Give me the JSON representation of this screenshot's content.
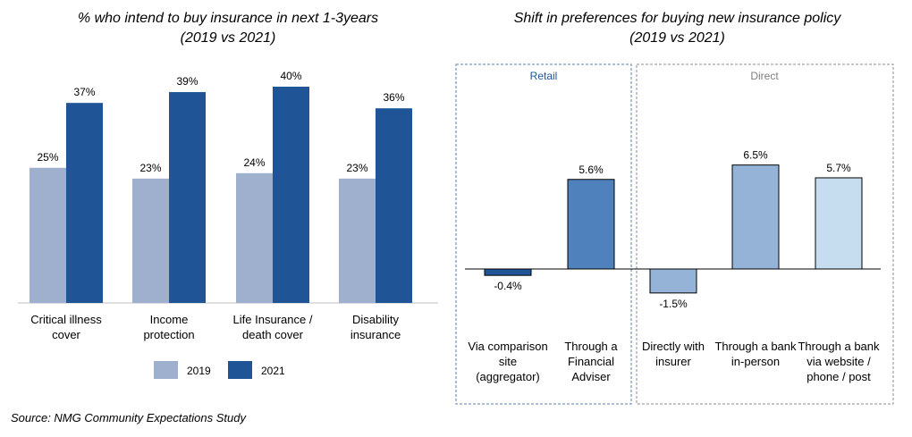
{
  "source": "Source: NMG Community Expectations Study",
  "chart_data": [
    {
      "type": "bar",
      "title": "% who intend to buy insurance in next 1-3years",
      "subtitle": "(2019 vs 2021)",
      "categories": [
        [
          "Critical illness",
          "cover"
        ],
        [
          "Income",
          "protection"
        ],
        [
          "Life Insurance /",
          "death cover"
        ],
        [
          "Disability",
          "insurance"
        ]
      ],
      "series": [
        {
          "name": "2019",
          "values": [
            25,
            23,
            24,
            23
          ],
          "labels": [
            "25%",
            "23%",
            "24%",
            "23%"
          ],
          "color": "#9FB0CE"
        },
        {
          "name": "2021",
          "values": [
            37,
            39,
            40,
            36
          ],
          "labels": [
            "37%",
            "39%",
            "40%",
            "36%"
          ],
          "color": "#1F5596"
        }
      ],
      "ylim": [
        0,
        45
      ],
      "grid": false,
      "legend": "bottom"
    },
    {
      "type": "bar",
      "title": "Shift in preferences for buying new insurance policy",
      "subtitle": "(2019 vs 2021)",
      "groups": [
        "Retail",
        "Direct"
      ],
      "categories": [
        {
          "group": "Retail",
          "label": [
            "Via comparison",
            "site",
            "(aggregator)"
          ],
          "value": -0.4,
          "value_label": "-0.4%",
          "color": "#1F5596"
        },
        {
          "group": "Retail",
          "label": [
            "Through a",
            "Financial",
            "Adviser"
          ],
          "value": 5.6,
          "value_label": "5.6%",
          "color": "#4F81BD"
        },
        {
          "group": "Direct",
          "label": [
            "Directly with",
            "insurer"
          ],
          "value": -1.5,
          "value_label": "-1.5%",
          "color": "#95B3D7"
        },
        {
          "group": "Direct",
          "label": [
            "Through a bank",
            "in-person"
          ],
          "value": 6.5,
          "value_label": "6.5%",
          "color": "#95B3D7"
        },
        {
          "group": "Direct",
          "label": [
            "Through a bank",
            "via website /",
            "phone / post"
          ],
          "value": 5.7,
          "value_label": "5.7%",
          "color": "#C6DCEF"
        }
      ],
      "ylim": [
        -2,
        7
      ],
      "grid": false
    }
  ]
}
